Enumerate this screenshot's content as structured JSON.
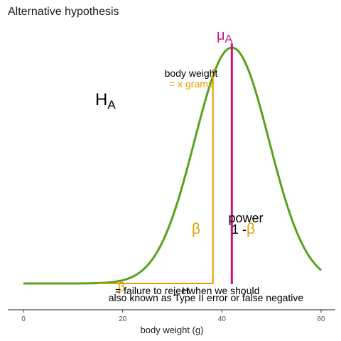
{
  "chart_data": {
    "type": "line",
    "title": "Alternative hypothesis",
    "xlabel": "body weight (g)",
    "ylabel": "",
    "xlim": [
      -3,
      63
    ],
    "x_ticks": [
      0,
      20,
      40,
      60
    ],
    "grid": false,
    "distribution": {
      "name": "H_A",
      "mean": 42,
      "sd": 7.5,
      "x_start": 0,
      "x_end": 60
    },
    "threshold_x": 38.2,
    "mean_x": 42,
    "colors": {
      "curve": "#5aa01e",
      "beta": "#e0a100",
      "mu": "#cc1177",
      "text": "#000000"
    },
    "annotations": {
      "h_a": "H",
      "h_a_sub": "A",
      "mu": "μ",
      "mu_sub": "A",
      "threshold_top": "body weight",
      "threshold_bottom": "= x grams",
      "beta": "β",
      "power_line1": "power",
      "power_prefix": "1 -",
      "power_beta": "β",
      "bottom_beta": "β",
      "bottom_line1a": "= failure to reject",
      "bottom_line1b": "H",
      "bottom_line1c": "when we should",
      "bottom_line2": "also known as Type II error or false negative"
    }
  }
}
